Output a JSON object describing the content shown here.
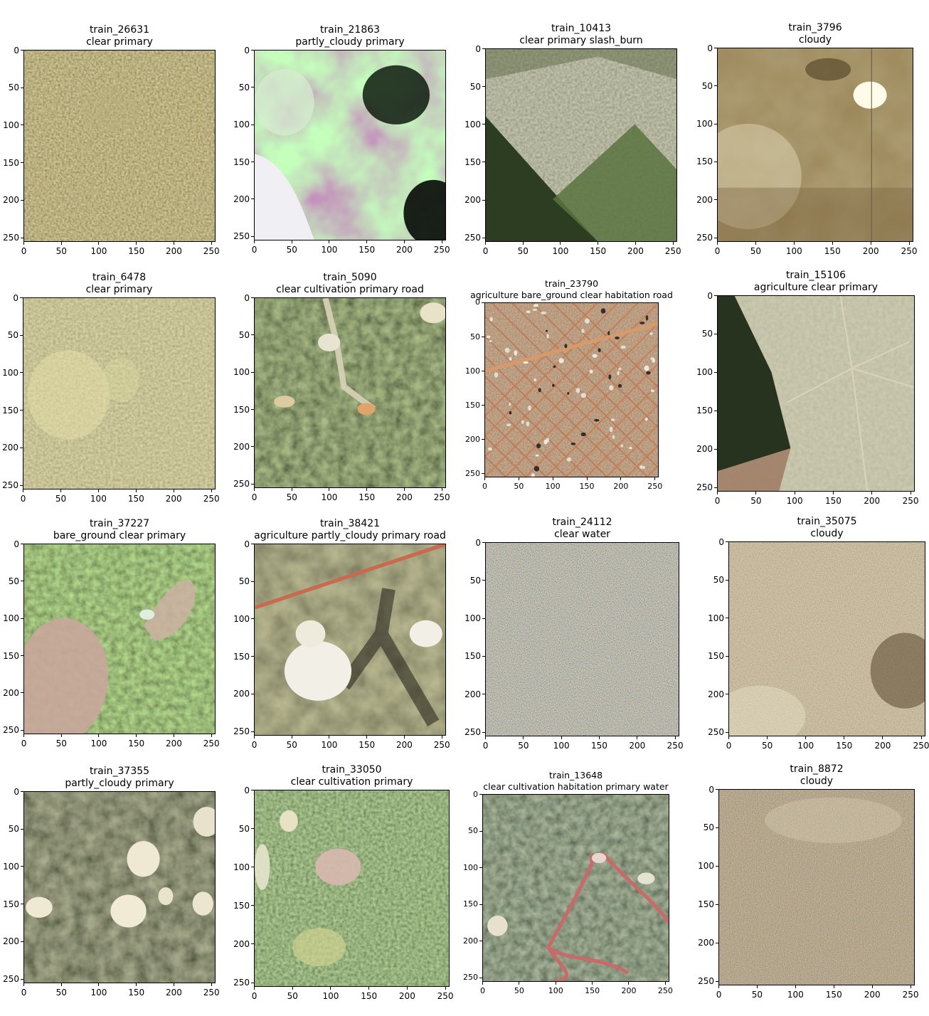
{
  "panels": [
    {
      "id": "train_26631",
      "tags": "clear primary",
      "texture": "forest-fine"
    },
    {
      "id": "train_21863",
      "tags": "partly_cloudy primary",
      "texture": "green-cloud"
    },
    {
      "id": "train_10413",
      "tags": "clear primary slash_burn",
      "texture": "forest-cleared-diagonal"
    },
    {
      "id": "train_3796",
      "tags": "cloudy",
      "texture": "haze-brown"
    },
    {
      "id": "train_6478",
      "tags": "clear primary",
      "texture": "forest-hazy"
    },
    {
      "id": "train_5090",
      "tags": "clear cultivation primary road",
      "texture": "forest-dark-road"
    },
    {
      "id": "train_23790",
      "tags": "agriculture bare_ground clear habitation road",
      "texture": "urban-grid"
    },
    {
      "id": "train_15106",
      "tags": "agriculture clear primary",
      "texture": "pasture-edge"
    },
    {
      "id": "train_37227",
      "tags": "bare_ground clear primary",
      "texture": "forest-bare-pink"
    },
    {
      "id": "train_38421",
      "tags": "agriculture partly_cloudy primary road",
      "texture": "cloud-road"
    },
    {
      "id": "train_24112",
      "tags": "clear water",
      "texture": "noise-color"
    },
    {
      "id": "train_35075",
      "tags": "cloudy",
      "texture": "haze-noise"
    },
    {
      "id": "train_37355",
      "tags": "partly_cloudy primary",
      "texture": "forest-clouds"
    },
    {
      "id": "train_33050",
      "tags": "clear cultivation primary",
      "texture": "forest-green-patches"
    },
    {
      "id": "train_13648",
      "tags": "clear cultivation habitation primary water",
      "texture": "forest-river"
    },
    {
      "id": "train_8872",
      "tags": "cloudy",
      "texture": "noise-warm"
    }
  ],
  "axis": {
    "x_ticks": [
      "0",
      "50",
      "100",
      "150",
      "200",
      "250"
    ],
    "y_ticks": [
      "0",
      "50",
      "100",
      "150",
      "200",
      "250"
    ],
    "range": [
      0,
      256
    ]
  },
  "colors": {
    "forest": "#5a5a36",
    "forest_dark": "#2c3320",
    "cloud": "#efefe4",
    "bare": "#c7a79a",
    "road": "#c86a4e",
    "water": "#c35d52"
  }
}
